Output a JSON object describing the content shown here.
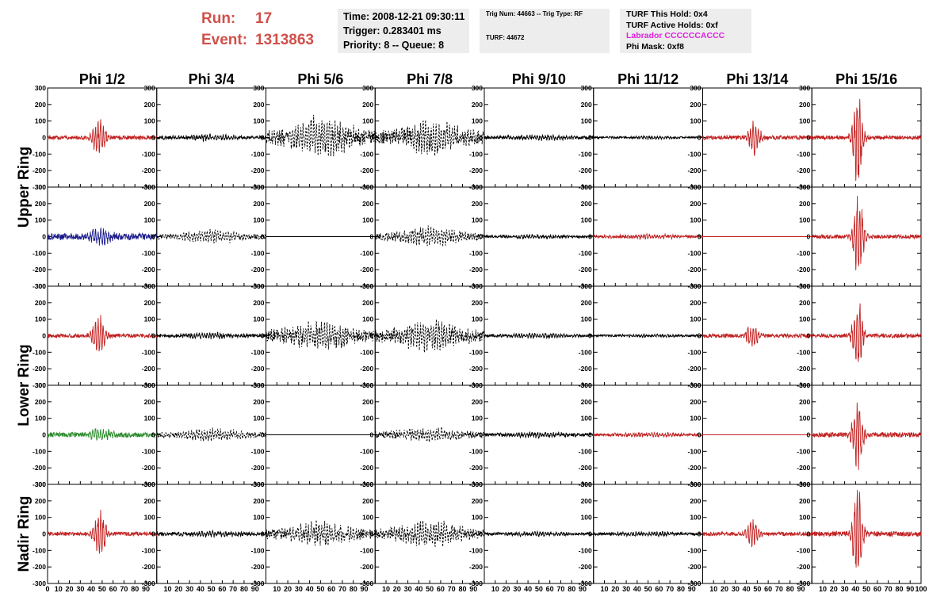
{
  "header": {
    "run_label": "Run:",
    "run_value": "17",
    "event_label": "Event:",
    "event_value": "1313863",
    "time": "Time: 2008-12-21 09:30:11",
    "trigger": "Trigger: 0.283401 ms",
    "priority": "Priority: 8 -- Queue: 8",
    "trig_num": "Trig Num: 44663 -- Trig Type: RF",
    "turf": "TURF: 44672",
    "turf_hold": "TURF This Hold: 0x4",
    "turf_active": "TURF Active Holds: 0xf",
    "labrador": "Labrador CCCCCCACCC",
    "phi_mask": "Phi Mask: 0xf8"
  },
  "colors": {
    "header_red": "#d0504a",
    "labrador": "#e020e0"
  },
  "chart_data": {
    "type": "line",
    "grid": false,
    "columns": [
      "Phi 1/2",
      "Phi 3/4",
      "Phi 5/6",
      "Phi 7/8",
      "Phi 9/10",
      "Phi 11/12",
      "Phi 13/14",
      "Phi 15/16"
    ],
    "ring_labels": [
      "Upper Ring",
      "Lower Ring",
      "Nadir Ring"
    ],
    "xlim": [
      0,
      100
    ],
    "ylim": [
      -300,
      300
    ],
    "x_tick_labels": [
      "0",
      "10",
      "20",
      "30",
      "40",
      "50",
      "60",
      "70",
      "80",
      "90",
      "100"
    ],
    "y_tick_labels": [
      "300",
      "200",
      "100",
      "0",
      "-100",
      "-200",
      "-300"
    ],
    "rows": [
      [
        {
          "color": "#c02020",
          "dashed": false,
          "flat": false,
          "amp": 130,
          "center": 47,
          "width": 6,
          "noise": 12
        },
        {
          "color": "#000000",
          "dashed": false,
          "flat": false,
          "amp": 15,
          "center": 50,
          "width": 30,
          "noise": 10
        },
        {
          "color": "#000000",
          "dashed": true,
          "flat": false,
          "amp": 110,
          "center": 50,
          "width": 30,
          "noise": 40
        },
        {
          "color": "#000000",
          "dashed": true,
          "flat": false,
          "amp": 90,
          "center": 50,
          "width": 30,
          "noise": 40
        },
        {
          "color": "#000000",
          "dashed": false,
          "flat": false,
          "amp": 15,
          "center": 50,
          "width": 30,
          "noise": 10
        },
        {
          "color": "#000000",
          "dashed": false,
          "flat": false,
          "amp": 8,
          "center": 50,
          "width": 30,
          "noise": 6
        },
        {
          "color": "#c02020",
          "dashed": false,
          "flat": false,
          "amp": 110,
          "center": 47,
          "width": 6,
          "noise": 12
        },
        {
          "color": "#c02020",
          "dashed": false,
          "flat": false,
          "amp": 290,
          "center": 42,
          "width": 5,
          "noise": 12
        }
      ],
      [
        {
          "color": "#1a1a8c",
          "dashed": false,
          "flat": false,
          "amp": 55,
          "center": 48,
          "width": 10,
          "noise": 20
        },
        {
          "color": "#000000",
          "dashed": true,
          "flat": false,
          "amp": 35,
          "center": 50,
          "width": 30,
          "noise": 15
        },
        {
          "color": "#000000",
          "dashed": false,
          "flat": true,
          "amp": 0,
          "center": 50,
          "width": 30,
          "noise": 0
        },
        {
          "color": "#000000",
          "dashed": true,
          "flat": false,
          "amp": 55,
          "center": 50,
          "width": 30,
          "noise": 20
        },
        {
          "color": "#000000",
          "dashed": false,
          "flat": false,
          "amp": 10,
          "center": 50,
          "width": 30,
          "noise": 8
        },
        {
          "color": "#c02020",
          "dashed": false,
          "flat": false,
          "amp": 12,
          "center": 50,
          "width": 30,
          "noise": 8
        },
        {
          "color": "#c02020",
          "dashed": false,
          "flat": true,
          "amp": 0,
          "center": 50,
          "width": 30,
          "noise": 0
        },
        {
          "color": "#c02020",
          "dashed": false,
          "flat": false,
          "amp": 270,
          "center": 43,
          "width": 5,
          "noise": 12
        }
      ],
      [
        {
          "color": "#c02020",
          "dashed": false,
          "flat": false,
          "amp": 130,
          "center": 47,
          "width": 6,
          "noise": 12
        },
        {
          "color": "#000000",
          "dashed": false,
          "flat": false,
          "amp": 15,
          "center": 50,
          "width": 30,
          "noise": 10
        },
        {
          "color": "#000000",
          "dashed": true,
          "flat": false,
          "amp": 80,
          "center": 50,
          "width": 30,
          "noise": 35
        },
        {
          "color": "#000000",
          "dashed": true,
          "flat": false,
          "amp": 90,
          "center": 50,
          "width": 30,
          "noise": 35
        },
        {
          "color": "#000000",
          "dashed": false,
          "flat": false,
          "amp": 12,
          "center": 50,
          "width": 30,
          "noise": 8
        },
        {
          "color": "#000000",
          "dashed": false,
          "flat": false,
          "amp": 8,
          "center": 50,
          "width": 30,
          "noise": 6
        },
        {
          "color": "#c02020",
          "dashed": false,
          "flat": false,
          "amp": 80,
          "center": 45,
          "width": 6,
          "noise": 12
        },
        {
          "color": "#c02020",
          "dashed": false,
          "flat": false,
          "amp": 240,
          "center": 42,
          "width": 5,
          "noise": 12
        }
      ],
      [
        {
          "color": "#2a8a2a",
          "dashed": false,
          "flat": false,
          "amp": 35,
          "center": 48,
          "width": 12,
          "noise": 15
        },
        {
          "color": "#000000",
          "dashed": true,
          "flat": false,
          "amp": 35,
          "center": 50,
          "width": 30,
          "noise": 15
        },
        {
          "color": "#000000",
          "dashed": false,
          "flat": true,
          "amp": 0,
          "center": 50,
          "width": 30,
          "noise": 0
        },
        {
          "color": "#000000",
          "dashed": true,
          "flat": false,
          "amp": 40,
          "center": 50,
          "width": 30,
          "noise": 18
        },
        {
          "color": "#000000",
          "dashed": false,
          "flat": false,
          "amp": 15,
          "center": 50,
          "width": 30,
          "noise": 10
        },
        {
          "color": "#c02020",
          "dashed": false,
          "flat": false,
          "amp": 12,
          "center": 50,
          "width": 30,
          "noise": 8
        },
        {
          "color": "#c02020",
          "dashed": false,
          "flat": true,
          "amp": 0,
          "center": 50,
          "width": 30,
          "noise": 0
        },
        {
          "color": "#c02020",
          "dashed": false,
          "flat": false,
          "amp": 240,
          "center": 42,
          "width": 5,
          "noise": 15
        }
      ],
      [
        {
          "color": "#c02020",
          "dashed": false,
          "flat": false,
          "amp": 140,
          "center": 48,
          "width": 6,
          "noise": 12
        },
        {
          "color": "#000000",
          "dashed": false,
          "flat": false,
          "amp": 15,
          "center": 50,
          "width": 30,
          "noise": 10
        },
        {
          "color": "#000000",
          "dashed": true,
          "flat": false,
          "amp": 60,
          "center": 50,
          "width": 30,
          "noise": 30
        },
        {
          "color": "#000000",
          "dashed": true,
          "flat": false,
          "amp": 70,
          "center": 50,
          "width": 30,
          "noise": 30
        },
        {
          "color": "#000000",
          "dashed": false,
          "flat": false,
          "amp": 12,
          "center": 50,
          "width": 30,
          "noise": 8
        },
        {
          "color": "#000000",
          "dashed": false,
          "flat": false,
          "amp": 12,
          "center": 50,
          "width": 30,
          "noise": 8
        },
        {
          "color": "#c02020",
          "dashed": false,
          "flat": false,
          "amp": 90,
          "center": 46,
          "width": 6,
          "noise": 12
        },
        {
          "color": "#c02020",
          "dashed": false,
          "flat": false,
          "amp": 290,
          "center": 42,
          "width": 5,
          "noise": 15
        }
      ]
    ]
  }
}
